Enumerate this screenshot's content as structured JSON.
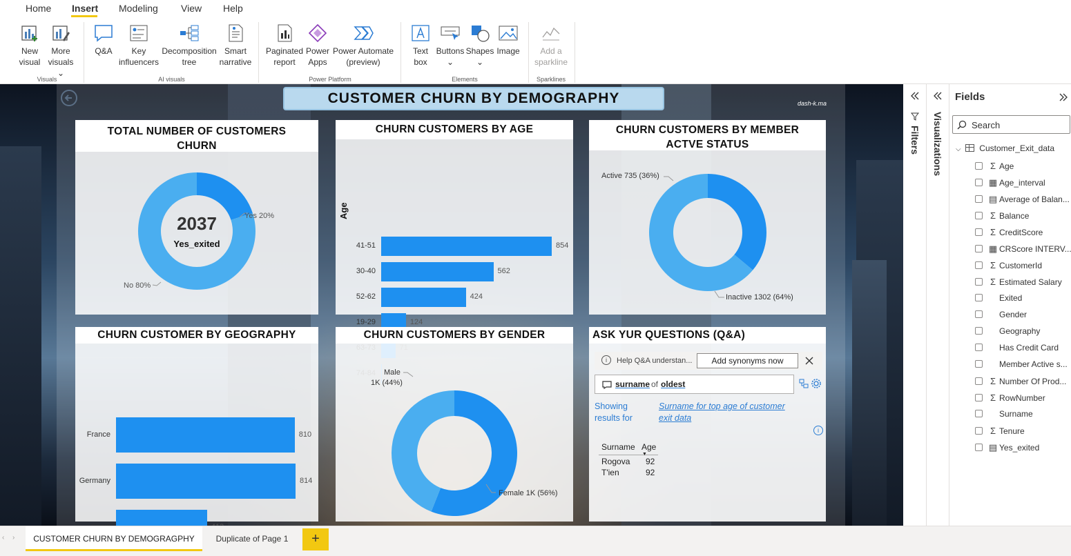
{
  "menu": {
    "tabs": [
      "Home",
      "Insert",
      "Modeling",
      "View",
      "Help"
    ],
    "active": "Insert"
  },
  "ribbon": {
    "buttons": [
      {
        "line1": "New",
        "line2": "visual"
      },
      {
        "line1": "More",
        "line2": "visuals ⌄"
      },
      {
        "line1": "Q&A",
        "line2": ""
      },
      {
        "line1": "Key",
        "line2": "influencers"
      },
      {
        "line1": "Decomposition",
        "line2": "tree"
      },
      {
        "line1": "Smart",
        "line2": "narrative"
      },
      {
        "line1": "Paginated",
        "line2": "report"
      },
      {
        "line1": "Power",
        "line2": "Apps"
      },
      {
        "line1": "Power Automate",
        "line2": "(preview)"
      },
      {
        "line1": "Text",
        "line2": "box"
      },
      {
        "line1": "Buttons",
        "line2": "⌄"
      },
      {
        "line1": "Shapes",
        "line2": "⌄"
      },
      {
        "line1": "Image",
        "line2": ""
      },
      {
        "line1": "Add a",
        "line2": "sparkline"
      }
    ],
    "groups": [
      "Visuals",
      "AI visuals",
      "Power Platform",
      "Elements",
      "Sparklines"
    ]
  },
  "report": {
    "title": "CUSTOMER CHURN BY DEMOGRAPHY",
    "watermark": "dash-k.ma",
    "panel_total": {
      "title": "TOTAL NUMBER OF CUSTOMERS CHURN",
      "center_value": "2037",
      "center_label": "Yes_exited",
      "label_yes": "Yes 20%",
      "label_no": "No 80%"
    },
    "panel_age": {
      "title": "CHURN CUSTOMERS BY AGE",
      "axis_label": "Age"
    },
    "panel_active": {
      "title": "CHURN CUSTOMERS BY MEMBER ACTVE STATUS",
      "label_active": "Active 735 (36%)",
      "label_inactive": "Inactive 1302 (64%)"
    },
    "panel_geo": {
      "title": "CHURN CUSTOMER BY GEOGRAPHY"
    },
    "panel_gender": {
      "title": "CHURN CUSTOMERS BY GENDER",
      "label_male_1": "Male",
      "label_male_2": "1K (44%)",
      "label_female": "Female 1K (56%)"
    },
    "panel_qa": {
      "title": "ASK YUR QUESTIONS (Q&A)",
      "info_text": "Help Q&A understan...",
      "synonyms_button": "Add synonyms now",
      "query_word1": "surname",
      "query_word2": "of",
      "query_word3": "oldest",
      "showing_label_1": "Showing",
      "showing_label_2": "results for",
      "result_link_1": "Surname for top age of customer",
      "result_link_2": "exit data",
      "table_headers": [
        "Surname",
        "Age"
      ],
      "table_rows": [
        [
          "Rogova",
          "92"
        ],
        [
          "T'ien",
          "92"
        ]
      ]
    }
  },
  "chart_data": [
    {
      "type": "pie",
      "title": "TOTAL NUMBER OF CUSTOMERS CHURN",
      "categories": [
        "Yes",
        "No"
      ],
      "values": [
        20,
        80
      ],
      "unit": "%",
      "colors": [
        "#1e90f0",
        "#4aaef0"
      ]
    },
    {
      "type": "bar",
      "title": "CHURN CUSTOMERS BY AGE",
      "ylabel": "Age",
      "categories": [
        "41-51",
        "30-40",
        "52-62",
        "19-29",
        "63-73",
        "74-84"
      ],
      "values": [
        854,
        562,
        424,
        124,
        71,
        2
      ],
      "color": "#1e90f0"
    },
    {
      "type": "pie",
      "title": "CHURN CUSTOMERS BY MEMBER ACTVE STATUS",
      "categories": [
        "Active",
        "Inactive"
      ],
      "values": [
        735,
        1302
      ],
      "colors": [
        "#1e90f0",
        "#4aaef0"
      ]
    },
    {
      "type": "bar",
      "title": "CHURN CUSTOMER BY GEOGRAPHY",
      "categories": [
        "France",
        "Germany",
        "Spain"
      ],
      "values": [
        810,
        814,
        413
      ],
      "color": "#1e90f0"
    },
    {
      "type": "pie",
      "title": "CHURN CUSTOMERS BY GENDER",
      "categories": [
        "Male",
        "Female"
      ],
      "values": [
        44,
        56
      ],
      "unit": "%",
      "colors": [
        "#4aaef0",
        "#1e90f0"
      ]
    }
  ],
  "panes": {
    "filters_label": "Filters",
    "visualizations_label": "Visualizations",
    "fields_title": "Fields",
    "search_placeholder": "Search",
    "table_name": "Customer_Exit_data",
    "fields": [
      {
        "name": "Age",
        "icon": "Σ"
      },
      {
        "name": "Age_interval",
        "icon": "▦"
      },
      {
        "name": "Average of Balan...",
        "icon": "▤"
      },
      {
        "name": "Balance",
        "icon": "Σ"
      },
      {
        "name": "CreditScore",
        "icon": "Σ"
      },
      {
        "name": "CRScore INTERV...",
        "icon": "▦"
      },
      {
        "name": "CustomerId",
        "icon": "Σ"
      },
      {
        "name": "Estimated Salary",
        "icon": "Σ"
      },
      {
        "name": "Exited",
        "icon": ""
      },
      {
        "name": "Gender",
        "icon": ""
      },
      {
        "name": "Geography",
        "icon": ""
      },
      {
        "name": "Has Credit Card",
        "icon": ""
      },
      {
        "name": "Member Active s...",
        "icon": ""
      },
      {
        "name": "Number Of Prod...",
        "icon": "Σ"
      },
      {
        "name": "RowNumber",
        "icon": "Σ"
      },
      {
        "name": "Surname",
        "icon": ""
      },
      {
        "name": "Tenure",
        "icon": "Σ"
      },
      {
        "name": "Yes_exited",
        "icon": "▤"
      }
    ]
  },
  "pages": {
    "tabs": [
      "CUSTOMER CHURN BY DEMOGRAGPHY",
      "Duplicate of Page 1"
    ],
    "add_label": "+"
  }
}
